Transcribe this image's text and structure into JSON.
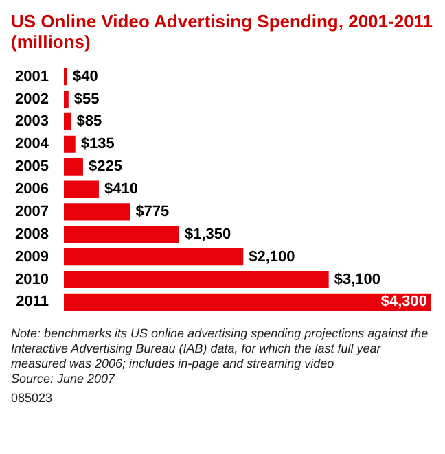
{
  "chart_data": {
    "type": "bar",
    "orientation": "horizontal",
    "title": "US Online Video Advertising Spending, 2001-2011 (millions)",
    "categories": [
      "2001",
      "2002",
      "2003",
      "2004",
      "2005",
      "2006",
      "2007",
      "2008",
      "2009",
      "2010",
      "2011"
    ],
    "values": [
      40,
      55,
      85,
      135,
      225,
      410,
      775,
      1350,
      2100,
      3100,
      4300
    ],
    "value_labels": [
      "$40",
      "$55",
      "$85",
      "$135",
      "$225",
      "$410",
      "$775",
      "$1,350",
      "$2,100",
      "$3,100",
      "$4,300"
    ],
    "color": "#e8000b",
    "legend": false,
    "annotations": [
      "Note: benchmarks its US online advertising spending projections against the Interactive Advertising Bureau (IAB) data, for which the last full year measured was 2006; includes in-page and streaming video",
      "Source: June 2007",
      "085023"
    ]
  }
}
